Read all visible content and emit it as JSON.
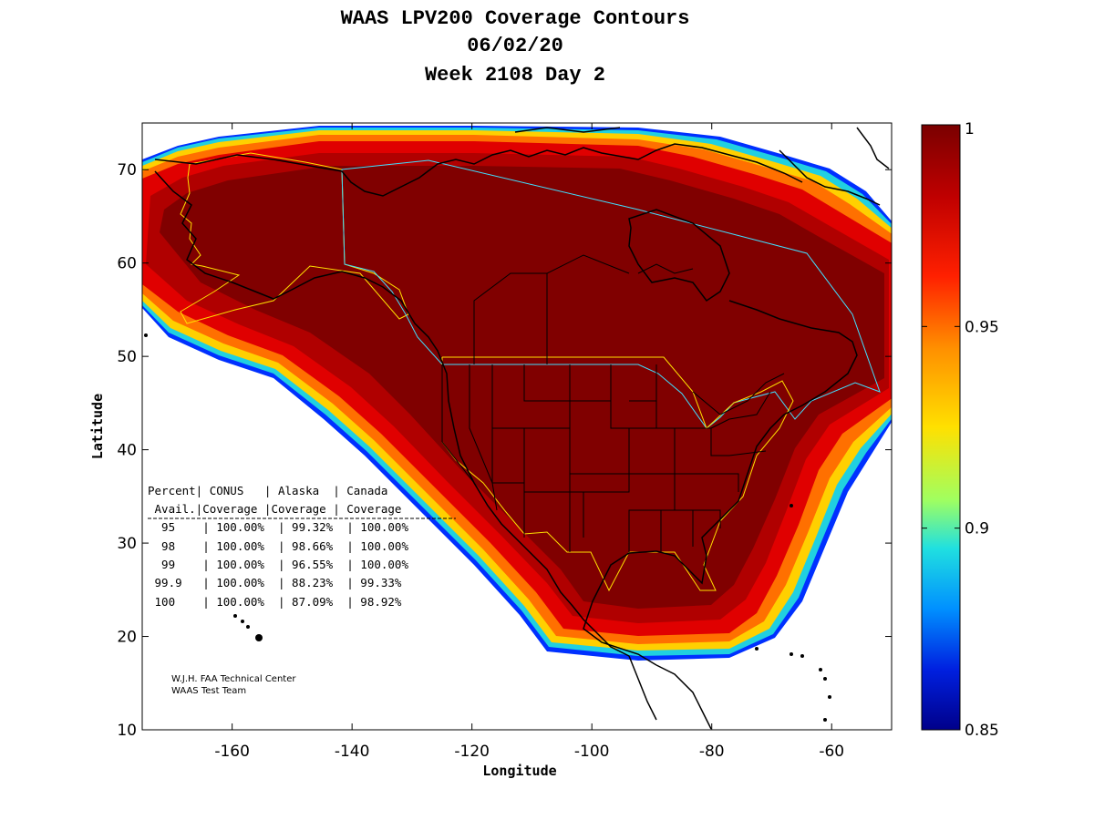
{
  "title": {
    "line1": "WAAS LPV200 Coverage Contours",
    "line2": "06/02/20",
    "line3": "Week 2108 Day 2"
  },
  "axes": {
    "xlabel": "Longitude",
    "ylabel": "Latitude",
    "xlim": [
      -175,
      -50
    ],
    "ylim": [
      10,
      75
    ],
    "xticks": [
      -160,
      -140,
      -120,
      -100,
      -80,
      -60
    ],
    "yticks": [
      10,
      20,
      30,
      40,
      50,
      60,
      70
    ]
  },
  "colorbar": {
    "min": 0.85,
    "max": 1,
    "ticks": [
      "1",
      "0.95",
      "0.9",
      "0.85"
    ],
    "colors": [
      "#7a0000",
      "#ff2000",
      "#ff9000",
      "#ffe000",
      "#a0ff60",
      "#20e0e0",
      "#0080ff",
      "#0000c8",
      "#00008a"
    ]
  },
  "table": {
    "header1": "Percent| CONUS   | Alaska  | Canada",
    "header2": " Avail.|Coverage |Coverage | Coverage",
    "rows": [
      "  95    | 100.00%  | 99.32%  | 100.00%",
      "  98    | 100.00%  | 98.66%  | 100.00%",
      "  99    | 100.00%  | 96.55%  | 100.00%",
      " 99.9   | 100.00%  | 88.23%  | 99.33%",
      " 100    | 100.00%  | 87.09%  | 98.92%"
    ]
  },
  "credit": {
    "line1": "W.J.H. FAA Technical Center",
    "line2": "WAAS Test Team"
  },
  "colors": {
    "core": "#800000",
    "red": "#e00000",
    "orange": "#ff7000",
    "yellow": "#ffd000",
    "cyan": "#20d0e0",
    "blue": "#0030ff",
    "conus_boundary": "#ffe000",
    "canada_boundary": "#40e0ff"
  }
}
